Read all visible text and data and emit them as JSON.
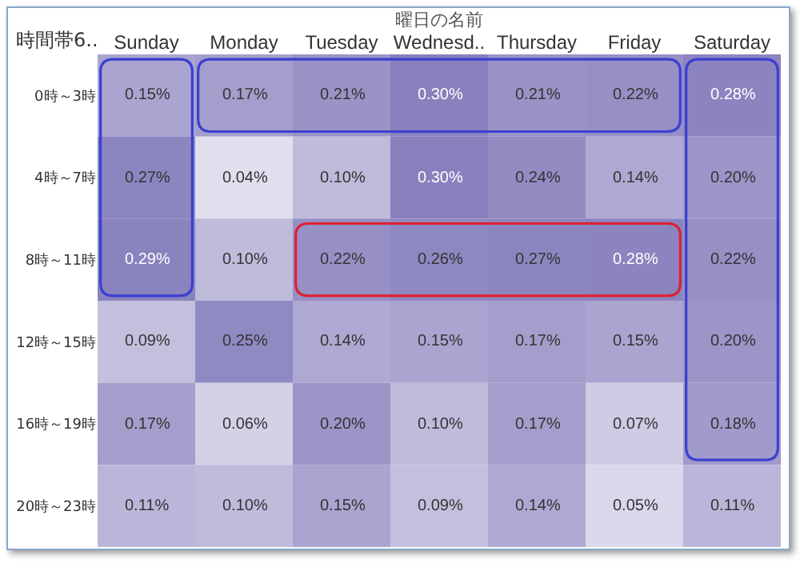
{
  "chart_data": {
    "type": "heatmap",
    "xlabel": "曜日の名前",
    "ylabel": "時間帯6..",
    "categories": [
      "Sunday",
      "Monday",
      "Tuesday",
      "Wednesd..",
      "Thursday",
      "Friday",
      "Saturday"
    ],
    "y_categories": [
      "0時～3時",
      "4時～7時",
      "8時～11時",
      "12時～15時",
      "16時～19時",
      "20時～23時"
    ],
    "cells": [
      [
        0.15,
        0.17,
        0.21,
        0.3,
        0.21,
        0.22,
        0.28
      ],
      [
        0.27,
        0.04,
        0.1,
        0.3,
        0.24,
        0.14,
        0.2
      ],
      [
        0.29,
        0.1,
        0.22,
        0.26,
        0.27,
        0.28,
        0.22
      ],
      [
        0.09,
        0.25,
        0.14,
        0.15,
        0.17,
        0.15,
        0.2
      ],
      [
        0.17,
        0.06,
        0.2,
        0.1,
        0.17,
        0.07,
        0.18
      ],
      [
        0.11,
        0.1,
        0.15,
        0.09,
        0.14,
        0.05,
        0.11
      ]
    ],
    "cell_labels": [
      [
        "0.15%",
        "0.17%",
        "0.21%",
        "0.30%",
        "0.21%",
        "0.22%",
        "0.28%"
      ],
      [
        "0.27%",
        "0.04%",
        "0.10%",
        "0.30%",
        "0.24%",
        "0.14%",
        "0.20%"
      ],
      [
        "0.29%",
        "0.10%",
        "0.22%",
        "0.26%",
        "0.27%",
        "0.28%",
        "0.22%"
      ],
      [
        "0.09%",
        "0.25%",
        "0.14%",
        "0.15%",
        "0.17%",
        "0.15%",
        "0.20%"
      ],
      [
        "0.17%",
        "0.06%",
        "0.20%",
        "0.10%",
        "0.17%",
        "0.07%",
        "0.18%"
      ],
      [
        "0.11%",
        "0.10%",
        "0.15%",
        "0.09%",
        "0.14%",
        "0.05%",
        "0.11%"
      ]
    ]
  }
}
